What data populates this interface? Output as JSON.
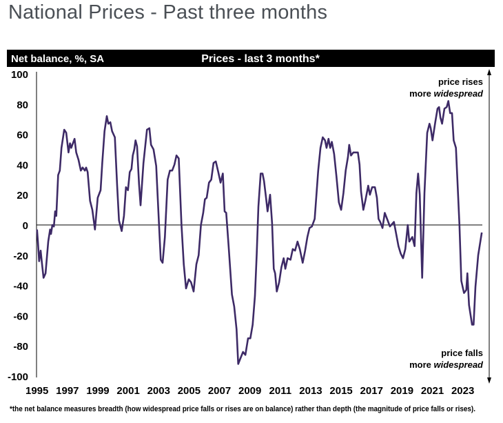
{
  "page": {
    "title": "National Prices - Past three months"
  },
  "chart_data": {
    "type": "line",
    "title": "Prices - last 3 months*",
    "ylabel": "Net balance, %, SA",
    "xlabel": "",
    "ylim": [
      -100,
      100
    ],
    "yticks": [
      "100",
      "80",
      "60",
      "40",
      "20",
      "0",
      "-20",
      "-40",
      "-60",
      "-80",
      "-100"
    ],
    "xticks": [
      "1995",
      "1997",
      "1999",
      "2001",
      "2003",
      "2005",
      "2007",
      "2009",
      "2011",
      "2013",
      "2015",
      "2017",
      "2019",
      "2021",
      "2023"
    ],
    "grid": false,
    "zero_line": true,
    "line_color": "#3d2a66",
    "annotations": {
      "top": [
        "price rises",
        "more ",
        "widespread"
      ],
      "bottom": [
        "price falls",
        "more ",
        "widespread"
      ]
    },
    "footnote": "*the net balance measures breadth (how widespread price falls or rises are on balance)  rather than depth (the magnitude of price falls or rises).",
    "series": [
      {
        "x": [
          1995.0,
          1995.06,
          1995.14,
          1995.24,
          1995.32,
          1995.43,
          1995.56,
          1995.74,
          1995.86,
          1995.92,
          1996.01,
          1996.11,
          1996.19,
          1996.27,
          1996.39,
          1996.5,
          1996.61,
          1996.79,
          1996.92,
          1997.07,
          1997.17,
          1997.25,
          1997.47,
          1997.58,
          1997.73,
          1997.88,
          1998.0,
          1998.15,
          1998.23,
          1998.33,
          1998.49,
          1998.64,
          1998.81,
          1998.99,
          1999.18,
          1999.29,
          1999.44,
          1999.59,
          1999.69,
          1999.82,
          1999.94,
          2000.12,
          2000.27,
          2000.39,
          2000.57,
          2000.72,
          2000.85,
          2000.98,
          2001.1,
          2001.21,
          2001.3,
          2001.4,
          2001.48,
          2001.58,
          2001.71,
          2001.81,
          2002.0,
          2002.23,
          2002.39,
          2002.5,
          2002.66,
          2002.84,
          2003.02,
          2003.14,
          2003.26,
          2003.41,
          2003.59,
          2003.74,
          2003.89,
          2004.04,
          2004.17,
          2004.32,
          2004.5,
          2004.65,
          2004.8,
          2004.98,
          2005.13,
          2005.3,
          2005.48,
          2005.63,
          2005.78,
          2005.93,
          2006.04,
          2006.16,
          2006.31,
          2006.46,
          2006.61,
          2006.76,
          2006.92,
          2007.07,
          2007.22,
          2007.34,
          2007.44,
          2007.6,
          2007.82,
          2007.97,
          2008.12,
          2008.23,
          2008.35,
          2008.55,
          2008.7,
          2008.88,
          2009.03,
          2009.18,
          2009.33,
          2009.45,
          2009.56,
          2009.71,
          2009.83,
          2009.93,
          2010.06,
          2010.16,
          2010.27,
          2010.33,
          2010.46,
          2010.57,
          2010.66,
          2010.77,
          2010.92,
          2011.07,
          2011.22,
          2011.33,
          2011.48,
          2011.67,
          2011.82,
          2011.97,
          2012.13,
          2012.28,
          2012.47,
          2012.63,
          2012.78,
          2012.92,
          2013.08,
          2013.26,
          2013.49,
          2013.64,
          2013.79,
          2013.94,
          2014.04,
          2014.17,
          2014.28,
          2014.39,
          2014.54,
          2014.69,
          2014.85,
          2015.0,
          2015.15,
          2015.3,
          2015.45,
          2015.53,
          2015.65,
          2015.8,
          2015.98,
          2016.1,
          2016.21,
          2016.31,
          2016.46,
          2016.59,
          2016.78,
          2016.89,
          2017.04,
          2017.22,
          2017.35,
          2017.46,
          2017.57,
          2017.72,
          2017.87,
          2018.06,
          2018.21,
          2018.47,
          2018.62,
          2018.77,
          2018.92,
          2019.07,
          2019.22,
          2019.38,
          2019.48,
          2019.68,
          2019.83,
          2019.95,
          2020.06,
          2020.17,
          2020.33,
          2020.48,
          2020.66,
          2020.81,
          2020.89,
          2021.01,
          2021.19,
          2021.34,
          2021.44,
          2021.53,
          2021.64,
          2021.79,
          2021.94,
          2022.05,
          2022.17,
          2022.29,
          2022.4,
          2022.55,
          2022.78,
          2022.9,
          2023.08,
          2023.23,
          2023.3,
          2023.41,
          2023.61,
          2023.71,
          2023.83,
          2024.01,
          2024.25
        ],
        "y": [
          -3,
          -11,
          -24,
          -17,
          -25,
          -35,
          -32,
          -11,
          -3,
          -6,
          0,
          -1,
          9,
          6,
          33,
          36,
          51,
          63,
          61,
          48,
          54,
          51,
          57,
          48,
          43,
          36,
          38,
          36,
          38,
          35,
          16,
          10,
          -3,
          18,
          23,
          41,
          62,
          72,
          67,
          68,
          62,
          58,
          26,
          3,
          -4,
          6,
          25,
          23,
          35,
          37,
          46,
          50,
          56,
          52,
          27,
          13,
          41,
          63,
          64,
          53,
          50,
          39,
          1,
          -23,
          -25,
          -8,
          30,
          36,
          36,
          40,
          46,
          44,
          0,
          -26,
          -42,
          -36,
          -38,
          -44,
          -26,
          -20,
          0,
          8,
          17,
          18,
          28,
          30,
          41,
          42,
          35,
          28,
          34,
          9,
          8,
          -14,
          -46,
          -54,
          -69,
          -92,
          -89,
          -84,
          -86,
          -75,
          -75,
          -66,
          -47,
          -19,
          12,
          34,
          34,
          29,
          18,
          9,
          16,
          20,
          1,
          -29,
          -32,
          -44,
          -38,
          -28,
          -22,
          -29,
          -22,
          -23,
          -16,
          -17,
          -11,
          -16,
          -25,
          -17,
          -8,
          -2,
          -1,
          4,
          36,
          51,
          58,
          56,
          51,
          57,
          51,
          55,
          47,
          32,
          15,
          10,
          21,
          36,
          45,
          53,
          46,
          48,
          48,
          48,
          40,
          22,
          10,
          16,
          26,
          20,
          25,
          25,
          18,
          4,
          2,
          -2,
          8,
          3,
          -1,
          2,
          -6,
          -14,
          -19,
          -22,
          -16,
          0,
          -11,
          -8,
          -14,
          21,
          34,
          20,
          -35,
          21,
          61,
          67,
          64,
          56,
          68,
          77,
          78,
          71,
          67,
          77,
          78,
          82,
          74,
          74,
          56,
          51,
          0,
          -37,
          -45,
          -43,
          -32,
          -53,
          -66,
          -66,
          -41,
          -20,
          -5
        ]
      }
    ]
  }
}
